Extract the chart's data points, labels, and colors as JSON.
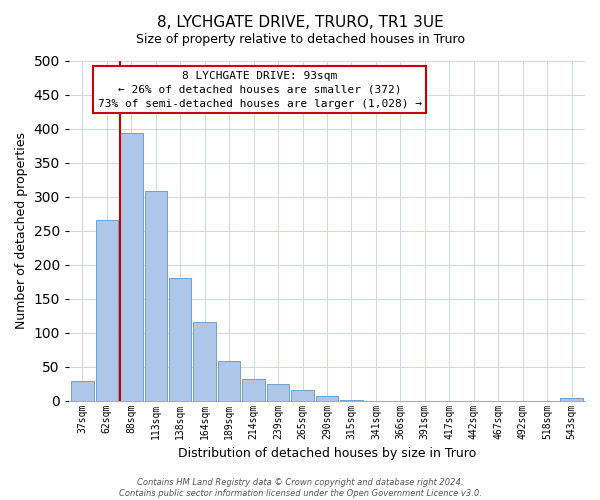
{
  "title": "8, LYCHGATE DRIVE, TRURO, TR1 3UE",
  "subtitle": "Size of property relative to detached houses in Truro",
  "xlabel": "Distribution of detached houses by size in Truro",
  "ylabel": "Number of detached properties",
  "bin_labels": [
    "37sqm",
    "62sqm",
    "88sqm",
    "113sqm",
    "138sqm",
    "164sqm",
    "189sqm",
    "214sqm",
    "239sqm",
    "265sqm",
    "290sqm",
    "315sqm",
    "341sqm",
    "366sqm",
    "391sqm",
    "417sqm",
    "442sqm",
    "467sqm",
    "492sqm",
    "518sqm",
    "543sqm"
  ],
  "bar_heights": [
    29,
    265,
    393,
    308,
    180,
    115,
    58,
    32,
    25,
    15,
    7,
    1,
    0,
    0,
    0,
    0,
    0,
    0,
    0,
    0,
    4
  ],
  "bar_color": "#aec6e8",
  "bar_edge_color": "#6fa0cc",
  "vline_bar_index": 2,
  "vline_color": "#cc0000",
  "annotation_title": "8 LYCHGATE DRIVE: 93sqm",
  "annotation_line1": "← 26% of detached houses are smaller (372)",
  "annotation_line2": "73% of semi-detached houses are larger (1,028) →",
  "annotation_box_facecolor": "#ffffff",
  "annotation_box_edgecolor": "#cc0000",
  "ylim": [
    0,
    500
  ],
  "yticks": [
    0,
    50,
    100,
    150,
    200,
    250,
    300,
    350,
    400,
    450,
    500
  ],
  "grid_color": "#d0d8e8",
  "footer_line1": "Contains HM Land Registry data © Crown copyright and database right 2024.",
  "footer_line2": "Contains public sector information licensed under the Open Government Licence v3.0.",
  "title_fontsize": 11,
  "subtitle_fontsize": 9,
  "xlabel_fontsize": 9,
  "ylabel_fontsize": 9,
  "tick_fontsize": 7,
  "annotation_fontsize": 8,
  "footer_fontsize": 6
}
